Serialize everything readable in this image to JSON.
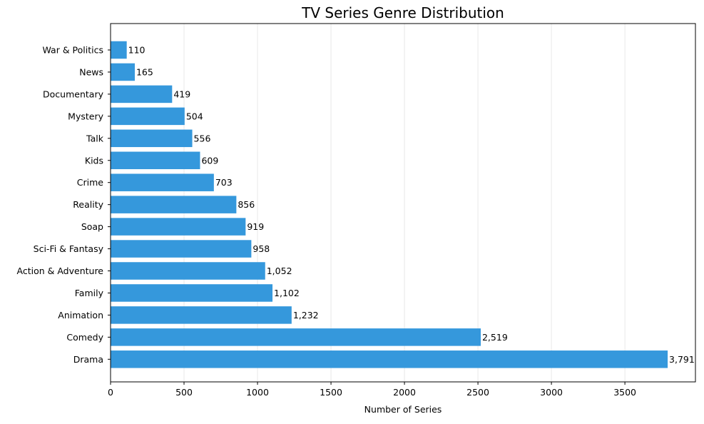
{
  "chart_data": {
    "type": "bar",
    "orientation": "horizontal",
    "title": "TV Series Genre Distribution",
    "xlabel": "Number of Series",
    "ylabel": "",
    "xlim": [
      0,
      3980
    ],
    "xticks": [
      0,
      500,
      1000,
      1500,
      2000,
      2500,
      3000,
      3500
    ],
    "grid": "vertical",
    "bar_color": "#3598dc",
    "grid_color": "#e8e8e8",
    "categories": [
      "War & Politics",
      "News",
      "Documentary",
      "Mystery",
      "Talk",
      "Kids",
      "Crime",
      "Reality",
      "Soap",
      "Sci-Fi & Fantasy",
      "Action & Adventure",
      "Family",
      "Animation",
      "Comedy",
      "Drama"
    ],
    "values": [
      110,
      165,
      419,
      504,
      556,
      609,
      703,
      856,
      919,
      958,
      1052,
      1102,
      1232,
      2519,
      3791
    ],
    "value_labels": [
      "110",
      "165",
      "419",
      "504",
      "556",
      "609",
      "703",
      "856",
      "919",
      "958",
      "1,052",
      "1,102",
      "1,232",
      "2,519",
      "3,791"
    ]
  }
}
